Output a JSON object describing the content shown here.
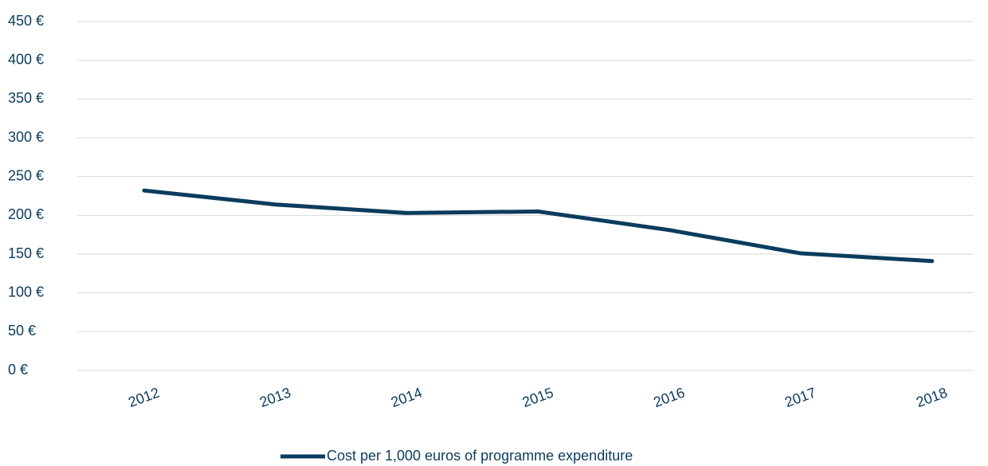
{
  "chart_data": {
    "type": "line",
    "categories": [
      "2012",
      "2013",
      "2014",
      "2015",
      "2016",
      "2017",
      "2018"
    ],
    "series": [
      {
        "name": "Cost per 1,000 euros of programme expenditure",
        "color": "#0b3c5d",
        "values": [
          232,
          214,
          203,
          205,
          181,
          151,
          141
        ]
      }
    ],
    "ylim": [
      0,
      450
    ],
    "yticks": [
      {
        "value": 0,
        "label": "0 €"
      },
      {
        "value": 50,
        "label": "50 €"
      },
      {
        "value": 100,
        "label": "100 €"
      },
      {
        "value": 150,
        "label": "150 €"
      },
      {
        "value": 200,
        "label": "200 €"
      },
      {
        "value": 250,
        "label": "250 €"
      },
      {
        "value": 300,
        "label": "300 €"
      },
      {
        "value": 350,
        "label": "350 €"
      },
      {
        "value": 400,
        "label": "400 €"
      },
      {
        "value": 450,
        "label": "450 €"
      }
    ],
    "grid": true,
    "legend": "bottom"
  }
}
